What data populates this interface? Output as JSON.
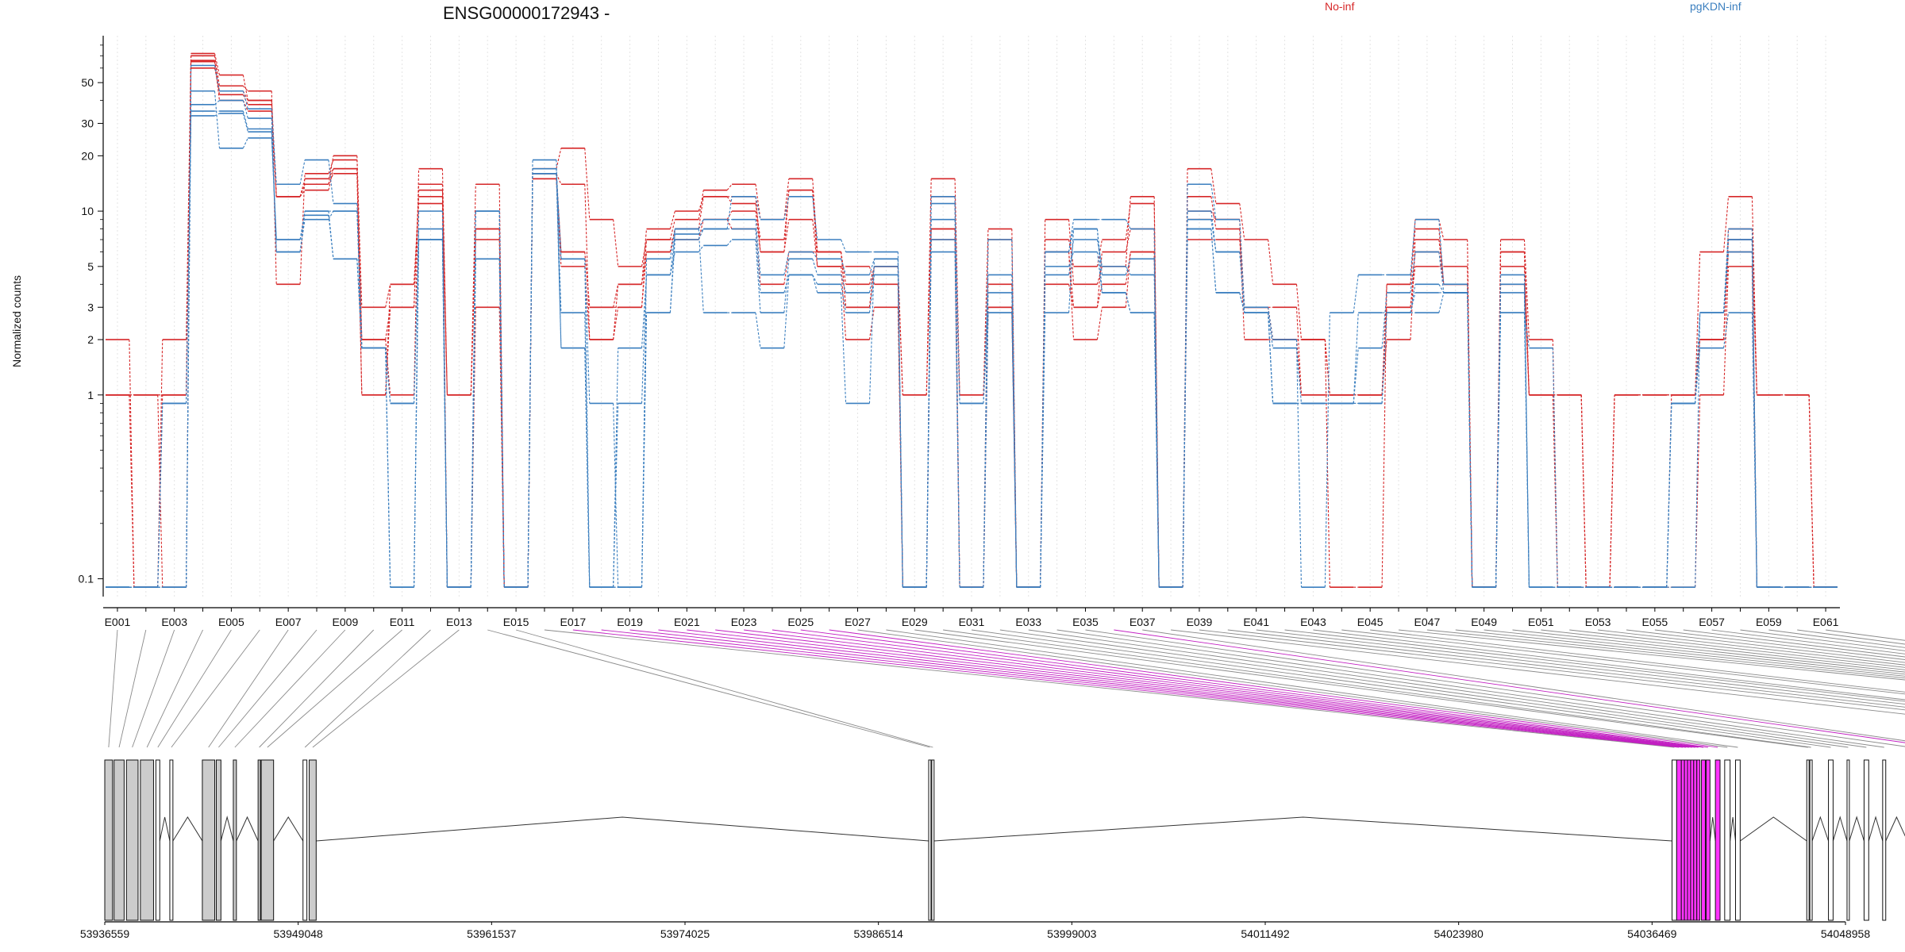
{
  "figure": {
    "title": "ENSG00000172943 -",
    "ylabel": "Normalized counts",
    "legend": [
      {
        "name": "No-inf",
        "color": "#d62728"
      },
      {
        "name": "pgKDN-inf",
        "color": "#3b7fbf"
      }
    ]
  },
  "chart_data": [
    {
      "type": "line",
      "title": "ENSG00000172943 -",
      "ylabel": "Normalized counts",
      "yscale": "log",
      "ylim": [
        0.08,
        90
      ],
      "yticks": [
        0.1,
        1,
        2,
        3,
        5,
        10,
        20,
        30,
        50
      ],
      "ytick_labels": [
        "0.1",
        "1",
        "2",
        "3",
        "5",
        "10",
        "20",
        "30",
        "50"
      ],
      "grid": "vertical dotted",
      "legend_position": "top",
      "x": [
        "E001",
        "E002",
        "E003",
        "E004",
        "E005",
        "E006",
        "E007",
        "E008",
        "E009",
        "E010",
        "E011",
        "E012",
        "E013",
        "E014",
        "E015",
        "E016",
        "E017",
        "E018",
        "E019",
        "E020",
        "E021",
        "E022",
        "E023",
        "E024",
        "E025",
        "E026",
        "E027",
        "E028",
        "E029",
        "E030",
        "E031",
        "E032",
        "E033",
        "E034",
        "E035",
        "E036",
        "E037",
        "E038",
        "E039",
        "E040",
        "E041",
        "E042",
        "E043",
        "E044",
        "E045",
        "E046",
        "E047",
        "E048",
        "E049",
        "E050",
        "E051",
        "E052",
        "E053",
        "E054",
        "E055",
        "E056",
        "E057",
        "E058",
        "E059",
        "E060",
        "E061"
      ],
      "xtick_labels": [
        "E001",
        "E003",
        "E005",
        "E007",
        "E009",
        "E011",
        "E013",
        "E015",
        "E017",
        "E019",
        "E021",
        "E023",
        "E025",
        "E027",
        "E029",
        "E031",
        "E033",
        "E035",
        "E037",
        "E039",
        "E041",
        "E043",
        "E045",
        "E047",
        "E049",
        "E051",
        "E053",
        "E055",
        "E057",
        "E059",
        "E061"
      ],
      "series": [
        {
          "group": "No-inf",
          "color": "#d62728",
          "values": [
            2,
            0.09,
            1,
            72,
            55,
            40,
            12,
            14,
            20,
            2,
            1,
            17,
            1,
            14,
            0.09,
            17,
            22,
            9,
            5,
            7,
            9,
            13,
            14,
            9,
            15,
            6,
            3,
            5,
            1,
            15,
            1,
            8,
            0.09,
            9,
            4,
            5,
            12,
            0.09,
            17,
            11,
            7,
            4,
            2,
            0.09,
            0.09,
            4,
            9,
            7,
            0.09,
            6,
            1,
            1,
            0.09,
            1,
            1,
            1,
            6,
            12,
            1,
            1,
            0.09
          ]
        },
        {
          "group": "No-inf",
          "color": "#d62728",
          "values": [
            1,
            0.09,
            2,
            70,
            48,
            45,
            4,
            16,
            19,
            3,
            4,
            12,
            0.09,
            8,
            0.09,
            16,
            14,
            2,
            4,
            8,
            10,
            12,
            11,
            7,
            13,
            5,
            5,
            4,
            0.09,
            8,
            0.09,
            7,
            0.09,
            7,
            5,
            7,
            11,
            0.09,
            12,
            8,
            2,
            2,
            1,
            1,
            1,
            3,
            5,
            5,
            0.09,
            7,
            2,
            0.09,
            0.09,
            1,
            1,
            1,
            2,
            8,
            1,
            1,
            0.09
          ]
        },
        {
          "group": "No-inf",
          "color": "#d62728",
          "values": [
            1,
            1,
            0.09,
            66,
            43,
            38,
            12,
            13,
            17,
            2,
            3,
            14,
            0.09,
            3,
            0.09,
            15,
            6,
            3,
            3,
            6,
            8,
            9,
            10,
            6,
            9,
            5,
            2,
            3,
            0.09,
            7,
            1,
            4,
            0.09,
            6,
            3,
            6,
            8,
            0.09,
            9,
            9,
            3,
            2,
            2,
            1,
            1,
            3,
            6,
            4,
            0.09,
            5,
            1,
            1,
            0.09,
            0.09,
            0.09,
            1,
            2,
            6,
            1,
            1,
            0.09
          ]
        },
        {
          "group": "No-inf",
          "color": "#d62728",
          "values": [
            1,
            1,
            1,
            65,
            40,
            35,
            12,
            14,
            16,
            1,
            3,
            13,
            1,
            7,
            0.09,
            16,
            6,
            3,
            4,
            6,
            8,
            12,
            12,
            6,
            13,
            6,
            4,
            5,
            1,
            8,
            0.09,
            3,
            0.09,
            6,
            2,
            3,
            6,
            0.09,
            10,
            9,
            3,
            3,
            1,
            1,
            1,
            2,
            7,
            4,
            0.09,
            4,
            1,
            0.09,
            0.09,
            1,
            1,
            1,
            2,
            7,
            0.09,
            0.09,
            0.09
          ]
        },
        {
          "group": "No-inf",
          "color": "#d62728",
          "values": [
            1,
            1,
            1,
            60,
            45,
            40,
            12,
            15,
            17,
            1,
            4,
            11,
            1,
            8,
            0.09,
            15,
            5,
            2,
            3,
            7,
            7,
            9,
            8,
            4,
            6,
            6,
            3,
            5,
            0.09,
            12,
            0.09,
            3,
            0.09,
            4,
            3,
            4,
            6,
            0.09,
            7,
            7,
            3,
            2,
            2,
            1,
            1,
            4,
            8,
            4,
            0.09,
            6,
            1,
            1,
            0.09,
            0.09,
            0.09,
            0.09,
            1,
            5,
            0.09,
            0.09,
            0.09
          ]
        },
        {
          "group": "pgKDN-inf",
          "color": "#3b7fbf",
          "values": [
            0.09,
            0.09,
            0.09,
            62,
            45,
            36,
            14,
            19,
            11,
            1.8,
            0.09,
            10,
            0.09,
            10,
            0.09,
            19,
            1.8,
            0.09,
            1.8,
            4.5,
            7.5,
            8,
            12,
            9,
            12,
            7,
            6,
            6,
            0.09,
            12,
            0.09,
            7,
            0.09,
            6,
            9,
            9,
            8,
            0.09,
            14,
            9,
            3,
            2,
            0.09,
            2.8,
            4.5,
            4.5,
            9,
            4,
            0.09,
            4,
            0.09,
            0.09,
            0.09,
            0.09,
            0.09,
            0.09,
            2.8,
            8,
            0.09,
            0.09,
            0.09
          ]
        },
        {
          "group": "pgKDN-inf",
          "color": "#3b7fbf",
          "values": [
            0.09,
            0.09,
            0.09,
            45,
            22,
            25,
            7,
            10,
            5.5,
            1.8,
            0.9,
            7,
            0.09,
            10,
            0.09,
            17,
            5.5,
            0.9,
            0.09,
            2.8,
            8,
            2.8,
            2.8,
            1.8,
            4.5,
            3.6,
            0.9,
            5.5,
            0.09,
            9,
            0.9,
            2.8,
            0.09,
            2.8,
            8,
            3.6,
            2.8,
            0.09,
            8,
            3.6,
            2.8,
            0.9,
            0.9,
            0.9,
            1.8,
            3.6,
            6,
            3.6,
            0.09,
            2.8,
            1.8,
            0.09,
            0.09,
            0.09,
            0.09,
            0.9,
            1.8,
            2.8,
            0.09,
            0.09,
            0.09
          ]
        },
        {
          "group": "pgKDN-inf",
          "color": "#3b7fbf",
          "values": [
            0.09,
            0.09,
            0.09,
            38,
            40,
            32,
            6,
            10,
            10,
            1.8,
            0.9,
            8,
            0.09,
            10,
            0.09,
            16,
            5.5,
            0.09,
            0.09,
            5.5,
            8,
            9,
            9,
            4.5,
            6,
            5.5,
            4.5,
            5.5,
            0.09,
            11,
            0.9,
            4.5,
            0.09,
            6,
            8,
            4.5,
            5.5,
            0.09,
            9,
            6,
            2.8,
            0.9,
            0.9,
            0.9,
            2.8,
            2.8,
            4,
            3.6,
            0.09,
            4.5,
            0.09,
            0.09,
            0.09,
            0.09,
            0.09,
            0.9,
            2.8,
            7,
            0.09,
            0.09,
            0.09
          ]
        },
        {
          "group": "pgKDN-inf",
          "color": "#3b7fbf",
          "values": [
            0.09,
            0.09,
            0.9,
            35,
            35,
            28,
            6,
            9,
            10,
            1.8,
            0.09,
            7,
            0.09,
            5.5,
            0.09,
            16,
            1.8,
            0.09,
            0.9,
            4.5,
            6,
            6.5,
            7,
            2.8,
            5.5,
            4.5,
            3.6,
            5,
            0.09,
            7,
            0.09,
            3.6,
            0.09,
            5,
            6,
            3.6,
            2.8,
            0.09,
            8,
            3.6,
            2.8,
            0.9,
            0.9,
            0.9,
            0.9,
            2.8,
            3.6,
            3.6,
            0.09,
            2.8,
            0.09,
            0.09,
            0.09,
            0.09,
            0.09,
            0.9,
            2.8,
            6,
            0.09,
            0.09,
            0.09
          ]
        },
        {
          "group": "pgKDN-inf",
          "color": "#3b7fbf",
          "values": [
            0.09,
            0.09,
            0.9,
            33,
            34,
            27,
            7,
            9.5,
            5.5,
            1.8,
            0.09,
            7,
            0.09,
            5.5,
            0.09,
            16,
            2.8,
            0.09,
            0.09,
            2.8,
            7,
            8,
            8,
            3.6,
            4.5,
            4,
            2.8,
            4.5,
            0.09,
            6,
            0.09,
            2.8,
            0.09,
            4.5,
            7,
            5,
            4.5,
            0.09,
            10,
            6,
            2.8,
            1.8,
            0.9,
            0.9,
            0.9,
            2.8,
            2.8,
            3.6,
            0.09,
            3.6,
            0.09,
            0.09,
            0.09,
            0.09,
            0.09,
            0.9,
            2.8,
            7,
            0.09,
            0.09,
            0.09
          ]
        }
      ]
    },
    {
      "type": "gene-model",
      "x_tick_labels": [
        "53936559",
        "53949048",
        "53961537",
        "53974025",
        "53986514",
        "53999003",
        "54011492",
        "54023980",
        "54036469",
        "54048958"
      ],
      "xlim": [
        53936559,
        54048958
      ],
      "highlighted_exons": [
        "E017",
        "E018",
        "E019",
        "E020",
        "E021",
        "E022",
        "E023",
        "E024",
        "E025",
        "E026",
        "E036"
      ],
      "highlight_color": "#ff33ff"
    }
  ]
}
